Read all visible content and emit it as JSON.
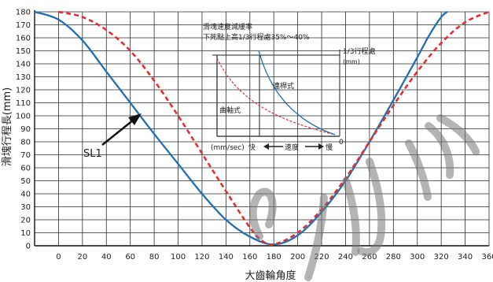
{
  "chart_data": {
    "type": "line",
    "xlabel": "大齒輪角度",
    "ylabel": "滑塊行程長(mm)",
    "xlim": [
      -20,
      360
    ],
    "ylim": [
      0,
      180
    ],
    "x_ticks": [
      "0",
      "20",
      "40",
      "60",
      "80",
      "100",
      "120",
      "140",
      "160",
      "180",
      "200",
      "220",
      "240",
      "260",
      "280",
      "300",
      "320",
      "340",
      "360"
    ],
    "y_ticks": [
      "0",
      "10",
      "20",
      "30",
      "40",
      "50",
      "60",
      "70",
      "80",
      "90",
      "100",
      "110",
      "120",
      "130",
      "140",
      "150",
      "160",
      "170",
      "180"
    ],
    "grid": true,
    "series": [
      {
        "style": "solid",
        "color": "#1f6fb5",
        "points": [
          [
            -20,
            180
          ],
          [
            0,
            174
          ],
          [
            20,
            158
          ],
          [
            40,
            134
          ],
          [
            60,
            110
          ],
          [
            80,
            86
          ],
          [
            100,
            63
          ],
          [
            120,
            40
          ],
          [
            140,
            20
          ],
          [
            160,
            7
          ],
          [
            180,
            1
          ],
          [
            200,
            8
          ],
          [
            220,
            26
          ],
          [
            240,
            50
          ],
          [
            260,
            80
          ],
          [
            280,
            112
          ],
          [
            300,
            145
          ],
          [
            310,
            162
          ],
          [
            320,
            176
          ],
          [
            325,
            180
          ]
        ]
      },
      {
        "style": "dashed",
        "color": "#e03030",
        "points": [
          [
            0,
            180
          ],
          [
            20,
            176
          ],
          [
            40,
            166
          ],
          [
            60,
            150
          ],
          [
            80,
            127
          ],
          [
            100,
            100
          ],
          [
            120,
            71
          ],
          [
            140,
            42
          ],
          [
            160,
            14
          ],
          [
            170,
            4
          ],
          [
            180,
            1
          ],
          [
            200,
            10
          ],
          [
            220,
            28
          ],
          [
            240,
            52
          ],
          [
            260,
            80
          ],
          [
            280,
            108
          ],
          [
            300,
            134
          ],
          [
            320,
            156
          ],
          [
            340,
            172
          ],
          [
            360,
            180
          ]
        ]
      }
    ],
    "annotations": [
      {
        "text": "SL1",
        "at": [
          -12,
          96
        ]
      }
    ],
    "inset": {
      "title_line1": "滑塊速度減緩率",
      "title_line2": "下死點上高1/3行程處35%～40%",
      "right_label": "1/3行程處",
      "right_unit": "(mm)",
      "solid_label": "連桿式",
      "dashed_label": "曲軸式",
      "bottom_left_label": "(mm/sec)",
      "fast_label": "快",
      "speed_label": "速度",
      "slow_label": "慢",
      "zero_label": "0"
    }
  },
  "watermark_text": "GXFS"
}
